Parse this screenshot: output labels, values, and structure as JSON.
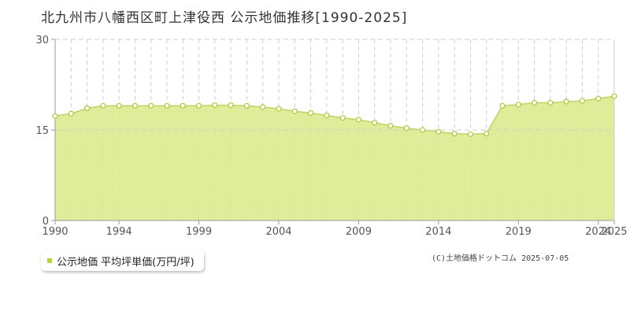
{
  "title": "北九州市八幡西区町上津役西 公示地価推移[1990-2025]",
  "legend_label": "公示地価 平均坪単価(万円/坪)",
  "credit": "(C)土地価格ドットコム 2025-07-05",
  "colors": {
    "fill": "#dbeb90",
    "line": "#bcd561",
    "marker": "#a9c934",
    "swatch": "#b5d33d",
    "grid": "#cfcfcf",
    "axis": "#999999"
  },
  "chart_data": {
    "type": "area",
    "x": [
      1990,
      1991,
      1992,
      1993,
      1994,
      1995,
      1996,
      1997,
      1998,
      1999,
      2000,
      2001,
      2002,
      2003,
      2004,
      2005,
      2006,
      2007,
      2008,
      2009,
      2010,
      2011,
      2012,
      2013,
      2014,
      2015,
      2016,
      2017,
      2018,
      2019,
      2020,
      2021,
      2022,
      2023,
      2024,
      2025
    ],
    "values": [
      17.3,
      17.7,
      18.6,
      19.0,
      19.0,
      19.0,
      19.0,
      19.0,
      19.0,
      19.0,
      19.1,
      19.1,
      19.0,
      18.8,
      18.5,
      18.1,
      17.8,
      17.4,
      17.0,
      16.7,
      16.2,
      15.7,
      15.3,
      15.0,
      14.7,
      14.4,
      14.3,
      14.4,
      19.0,
      19.2,
      19.5,
      19.5,
      19.7,
      19.8,
      20.2,
      20.6
    ],
    "xticks": [
      "1990",
      "1994",
      "1999",
      "2004",
      "2009",
      "2014",
      "2019",
      "2024",
      "2025"
    ],
    "xtick_years": [
      1990,
      1994,
      1999,
      2004,
      2009,
      2014,
      2019,
      2024,
      2025
    ],
    "yticks": [
      "0",
      "15",
      "30"
    ],
    "ylim": [
      0,
      30
    ],
    "xlim": [
      1990,
      2025
    ],
    "grid": true
  }
}
